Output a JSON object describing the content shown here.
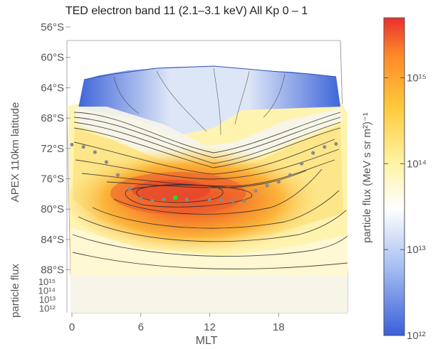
{
  "chart_data": {
    "type": "heatmap",
    "title": "TED electron band 11 (2.1–3.1 keV)  All  Kp 0 – 1",
    "xlabel": "MLT",
    "ylabel": "APEX 110km latitude",
    "zlabel": "particle flux",
    "colorbar_label": "particle flux (MeV s sr m²)⁻¹",
    "x_ticks": [
      "0",
      "6",
      "12",
      "18"
    ],
    "y_ticks": [
      "56°S",
      "60°S",
      "64°S",
      "68°S",
      "72°S",
      "76°S",
      "80°S",
      "84°S",
      "88°S"
    ],
    "z_ticks": [
      "10¹⁵",
      "10¹⁴",
      "10¹³",
      "10¹²"
    ],
    "colorbar_ticks": [
      "10¹⁵",
      "10¹⁴",
      "10¹³",
      "10¹²"
    ],
    "x_range": [
      0,
      24
    ],
    "y_range": [
      -56,
      -88
    ],
    "color_range": [
      1000000000000.0,
      5000000000000000.0
    ],
    "color_scale": "log",
    "colormap": [
      "#3a5fd8",
      "#ffffff",
      "#fff2a0",
      "#ffc93a",
      "#ff8a2a",
      "#e8302e"
    ],
    "peak": {
      "mlt": 9,
      "lat": -78.5,
      "color": "#22dd22"
    },
    "boundary_points": [
      {
        "mlt": 0,
        "lat": -71.5
      },
      {
        "mlt": 1,
        "lat": -71.8
      },
      {
        "mlt": 2,
        "lat": -72.5
      },
      {
        "mlt": 3,
        "lat": -73.8
      },
      {
        "mlt": 4,
        "lat": -75.5
      },
      {
        "mlt": 5,
        "lat": -77.3
      },
      {
        "mlt": 6,
        "lat": -78.6
      },
      {
        "mlt": 7,
        "lat": -78.9
      },
      {
        "mlt": 8,
        "lat": -78.7
      },
      {
        "mlt": 10,
        "lat": -78.7
      },
      {
        "mlt": 12,
        "lat": -78.8
      },
      {
        "mlt": 13,
        "lat": -78.8
      },
      {
        "mlt": 14,
        "lat": -78.9
      },
      {
        "mlt": 15,
        "lat": -78.9
      },
      {
        "mlt": 16,
        "lat": -77.6
      },
      {
        "mlt": 17,
        "lat": -76.9
      },
      {
        "mlt": 18,
        "lat": -76.4
      },
      {
        "mlt": 19,
        "lat": -75.5
      },
      {
        "mlt": 20,
        "lat": -74.0
      },
      {
        "mlt": 21,
        "lat": -72.6
      },
      {
        "mlt": 22,
        "lat": -71.8
      },
      {
        "mlt": 23,
        "lat": -71.4
      }
    ]
  }
}
